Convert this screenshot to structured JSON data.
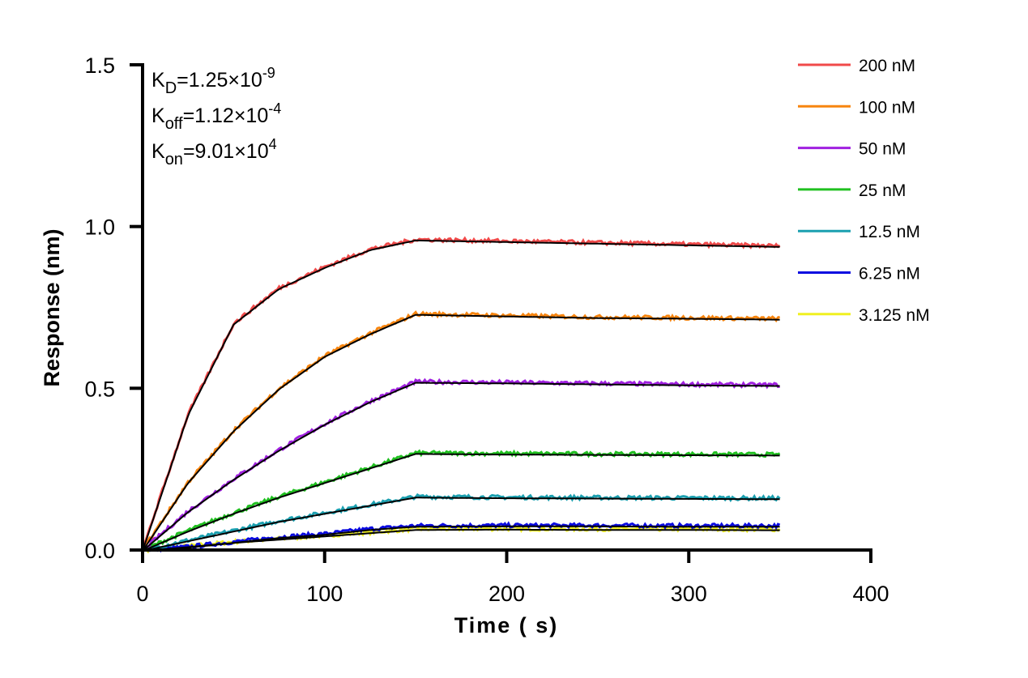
{
  "chart_data": {
    "type": "line",
    "xlabel": "Time ( s)",
    "ylabel": "Response (nm)",
    "xlim": [
      0,
      400
    ],
    "ylim": [
      0,
      1.5
    ],
    "xticks": [
      "0",
      "100",
      "200",
      "300",
      "400"
    ],
    "yticks": [
      "0.0",
      "0.5",
      "1.0",
      "1.5"
    ],
    "grid": false,
    "legend_position": "top-right",
    "annotations": [
      {
        "base": "K",
        "sub": "D",
        "eq": "=1.25×10",
        "sup": "-9"
      },
      {
        "base": "K",
        "sub": "off",
        "eq": "=1.12×10",
        "sup": "-4"
      },
      {
        "base": "K",
        "sub": "on",
        "eq": "=9.01×10",
        "sup": "4"
      }
    ],
    "fit_color": "#000000",
    "x": [
      0,
      25,
      50,
      75,
      100,
      125,
      150,
      200,
      250,
      300,
      350
    ],
    "series": [
      {
        "name": "200 nM",
        "color": "#f04a4a",
        "values": [
          0,
          0.42,
          0.7,
          0.81,
          0.875,
          0.93,
          0.96,
          0.955,
          0.95,
          0.945,
          0.94
        ]
      },
      {
        "name": "100 nM",
        "color": "#f7850f",
        "values": [
          0,
          0.21,
          0.37,
          0.5,
          0.6,
          0.67,
          0.73,
          0.725,
          0.72,
          0.718,
          0.715
        ]
      },
      {
        "name": "50 nM",
        "color": "#a020e0",
        "values": [
          0,
          0.12,
          0.22,
          0.31,
          0.39,
          0.46,
          0.52,
          0.518,
          0.515,
          0.512,
          0.51
        ]
      },
      {
        "name": "25 nM",
        "color": "#20c020",
        "values": [
          0,
          0.06,
          0.115,
          0.165,
          0.21,
          0.255,
          0.3,
          0.298,
          0.297,
          0.296,
          0.295
        ]
      },
      {
        "name": "12.5 nM",
        "color": "#1ba0b0",
        "values": [
          0,
          0.03,
          0.06,
          0.09,
          0.115,
          0.14,
          0.165,
          0.163,
          0.162,
          0.161,
          0.16
        ]
      },
      {
        "name": "6.25 nM",
        "color": "#0a0ae0",
        "values": [
          0,
          0.01,
          0.025,
          0.04,
          0.05,
          0.065,
          0.075,
          0.076,
          0.076,
          0.075,
          0.075
        ]
      },
      {
        "name": "3.125 nM",
        "color": "#f0f020",
        "values": [
          0,
          0.012,
          0.025,
          0.035,
          0.045,
          0.055,
          0.065,
          0.066,
          0.065,
          0.065,
          0.064
        ]
      }
    ]
  }
}
